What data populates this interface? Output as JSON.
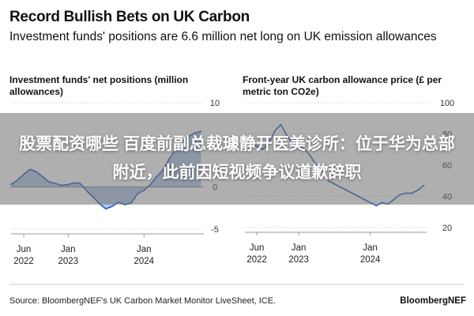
{
  "header": {
    "title": "Record Bullish Bets on UK Carbon",
    "subtitle": "Investment funds' positions are 6.6 million net long on UK emission allowances"
  },
  "chart_data": [
    {
      "type": "area",
      "title": "Investment funds' net positions (million allowances)",
      "xlabel": "",
      "ylabel": "",
      "ylim": [
        -5,
        10
      ],
      "yticks": [
        "10",
        "5",
        "0",
        "-5"
      ],
      "x_ticks": [
        {
          "line1": "Jun",
          "line2": "2022",
          "date": "2022-06-01"
        },
        {
          "line1": "Jan",
          "line2": "2023",
          "date": "2023-01-01"
        },
        {
          "line1": "Jan",
          "line2": "2024",
          "date": "2024-01-01"
        }
      ],
      "x_range": [
        "2022-04-01",
        "2024-10-15"
      ],
      "color": "#1f5fbf",
      "x": [
        "2022-04-01",
        "2022-05-01",
        "2022-06-01",
        "2022-07-01",
        "2022-08-01",
        "2022-09-01",
        "2022-10-01",
        "2022-11-01",
        "2022-12-01",
        "2023-01-01",
        "2023-02-01",
        "2023-03-01",
        "2023-04-01",
        "2023-05-01",
        "2023-06-01",
        "2023-07-01",
        "2023-08-01",
        "2023-09-01",
        "2023-10-01",
        "2023-11-01",
        "2023-12-01",
        "2024-01-01",
        "2024-02-01",
        "2024-03-01",
        "2024-04-01",
        "2024-05-01",
        "2024-06-01",
        "2024-07-01",
        "2024-08-01",
        "2024-09-01",
        "2024-10-01"
      ],
      "values": [
        0.3,
        0.8,
        1.5,
        2.1,
        1.8,
        1.2,
        0.6,
        0.4,
        0.2,
        0.3,
        0.5,
        0.4,
        -0.5,
        -1.2,
        -2.0,
        -2.6,
        -2.3,
        -1.8,
        -2.1,
        -1.9,
        -0.8,
        -0.4,
        0.3,
        1.2,
        2.0,
        3.3,
        4.5,
        5.3,
        6.0,
        6.4,
        6.6
      ]
    },
    {
      "type": "line",
      "title": "Front-year UK carbon allowance price (£ per metric ton CO2e)",
      "xlabel": "",
      "ylabel": "",
      "ylim": [
        20,
        100
      ],
      "yticks": [
        "100",
        "80",
        "60",
        "40",
        "20"
      ],
      "x_ticks": [
        {
          "line1": "Jun",
          "line2": "2022",
          "date": "2022-06-01"
        },
        {
          "line1": "Jan",
          "line2": "2023",
          "date": "2023-01-01"
        },
        {
          "line1": "Jan",
          "line2": "2024",
          "date": "2024-01-01"
        }
      ],
      "x_range": [
        "2022-04-01",
        "2024-10-15"
      ],
      "color": "#1f5fbf",
      "x": [
        "2022-04-01",
        "2022-05-01",
        "2022-06-01",
        "2022-07-01",
        "2022-08-01",
        "2022-09-01",
        "2022-10-01",
        "2022-11-01",
        "2022-12-01",
        "2023-01-01",
        "2023-02-01",
        "2023-03-01",
        "2023-04-01",
        "2023-05-01",
        "2023-06-01",
        "2023-07-01",
        "2023-08-01",
        "2023-09-01",
        "2023-10-01",
        "2023-11-01",
        "2023-12-01",
        "2024-01-01",
        "2024-02-01",
        "2024-03-01",
        "2024-04-01",
        "2024-05-01",
        "2024-06-01",
        "2024-07-01",
        "2024-08-01",
        "2024-09-01",
        "2024-10-01"
      ],
      "values": [
        78,
        74,
        72,
        70,
        74,
        82,
        86,
        79,
        74,
        72,
        70,
        66,
        60,
        56,
        50,
        48,
        46,
        44,
        42,
        40,
        38,
        36,
        34,
        36,
        35,
        38,
        41,
        42,
        42,
        44,
        47
      ]
    }
  ],
  "overlay": {
    "text": "股票配资哪些 百度前副总裁璩静开医美诊所：位于华为总部附近，此前因短视频争议道歉辞职"
  },
  "footer": {
    "source": "Source: BloombergNEF's UK Carbon Market Monitor LiveSheet, ICE.",
    "brand": "BloombergNEF"
  }
}
